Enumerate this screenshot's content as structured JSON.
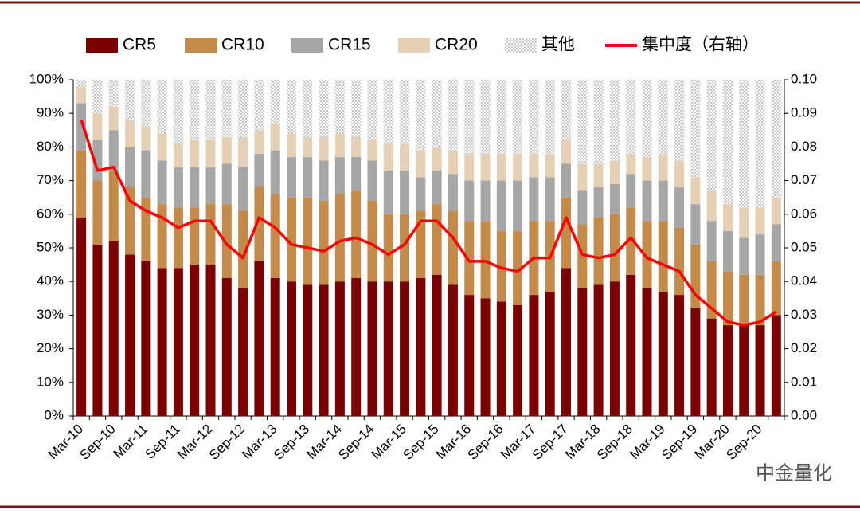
{
  "chart_data": {
    "type": "bar",
    "stacked": true,
    "categories": [
      "Mar-10",
      null,
      "Sep-10",
      null,
      "Mar-11",
      null,
      "Sep-11",
      null,
      "Mar-12",
      null,
      "Sep-12",
      null,
      "Mar-13",
      null,
      "Sep-13",
      null,
      "Mar-14",
      null,
      "Sep-14",
      null,
      "Mar-15",
      null,
      "Sep-15",
      null,
      "Mar-16",
      null,
      "Sep-16",
      null,
      "Mar-17",
      null,
      "Sep-17",
      null,
      "Mar-18",
      null,
      "Sep-18",
      null,
      "Mar-19",
      null,
      "Sep-19",
      null,
      "Mar-20",
      null,
      "Sep-20",
      null
    ],
    "series": [
      {
        "name": "CR5",
        "color": "#7b0000",
        "values": [
          59,
          51,
          52,
          48,
          46,
          44,
          44,
          45,
          45,
          41,
          38,
          46,
          41,
          40,
          39,
          39,
          40,
          41,
          40,
          40,
          40,
          41,
          42,
          39,
          36,
          35,
          34,
          33,
          36,
          37,
          44,
          38,
          39,
          40,
          42,
          38,
          37,
          36,
          32,
          29,
          27,
          27,
          27,
          30
        ]
      },
      {
        "name": "CR10",
        "color": "#c48a4a",
        "values": [
          20,
          19,
          21,
          20,
          19,
          19,
          18,
          17,
          18,
          22,
          23,
          22,
          25,
          25,
          26,
          25,
          26,
          26,
          24,
          20,
          20,
          20,
          21,
          22,
          22,
          23,
          21,
          22,
          22,
          21,
          21,
          19,
          20,
          20,
          20,
          20,
          21,
          20,
          19,
          17,
          16,
          15,
          15,
          16
        ]
      },
      {
        "name": "CR15",
        "color": "#a6a6a6",
        "values": [
          14,
          12,
          12,
          12,
          14,
          13,
          12,
          12,
          11,
          12,
          13,
          10,
          13,
          12,
          12,
          12,
          11,
          10,
          12,
          13,
          13,
          10,
          10,
          11,
          12,
          12,
          15,
          15,
          13,
          13,
          10,
          10,
          9,
          9,
          10,
          12,
          12,
          12,
          12,
          12,
          12,
          11,
          12,
          11
        ]
      },
      {
        "name": "CR20",
        "color": "#e6d0b5",
        "values": [
          5,
          8,
          7,
          8,
          7,
          8,
          7,
          8,
          8,
          8,
          9,
          7,
          8,
          7,
          6,
          7,
          7,
          6,
          6,
          8,
          8,
          8,
          7,
          7,
          8,
          8,
          8,
          8,
          7,
          7,
          7,
          8,
          7,
          7,
          6,
          7,
          8,
          8,
          8,
          9,
          8,
          9,
          8,
          8
        ]
      },
      {
        "name": "其他",
        "color": "#d0d0d0",
        "pattern": "dots",
        "values": [
          2,
          10,
          8,
          12,
          14,
          16,
          19,
          18,
          18,
          17,
          17,
          15,
          13,
          16,
          17,
          17,
          16,
          17,
          18,
          19,
          19,
          21,
          20,
          21,
          22,
          22,
          22,
          22,
          22,
          22,
          18,
          25,
          25,
          24,
          22,
          23,
          22,
          24,
          29,
          33,
          37,
          38,
          38,
          35
        ]
      },
      {
        "name": "集中度（右轴）",
        "color": "#ff0000",
        "type": "line",
        "axis": "y2",
        "values": [
          0.088,
          0.073,
          0.074,
          0.064,
          0.061,
          0.059,
          0.056,
          0.058,
          0.058,
          0.051,
          0.047,
          0.059,
          0.056,
          0.051,
          0.05,
          0.049,
          0.052,
          0.053,
          0.051,
          0.048,
          0.051,
          0.058,
          0.058,
          0.053,
          0.046,
          0.046,
          0.044,
          0.043,
          0.047,
          0.047,
          0.059,
          0.048,
          0.047,
          0.048,
          0.053,
          0.047,
          0.045,
          0.043,
          0.036,
          0.032,
          0.028,
          0.027,
          0.028,
          0.031
        ]
      }
    ],
    "ylim": [
      0,
      100
    ],
    "yticks": [
      {
        "value": 0,
        "label": "0%"
      },
      {
        "value": 10,
        "label": "10%"
      },
      {
        "value": 20,
        "label": "20%"
      },
      {
        "value": 30,
        "label": "30%"
      },
      {
        "value": 40,
        "label": "40%"
      },
      {
        "value": 50,
        "label": "50%"
      },
      {
        "value": 60,
        "label": "60%"
      },
      {
        "value": 70,
        "label": "70%"
      },
      {
        "value": 80,
        "label": "80%"
      },
      {
        "value": 90,
        "label": "90%"
      },
      {
        "value": 100,
        "label": "100%"
      }
    ],
    "y2lim": [
      0,
      0.1
    ],
    "y2ticks": [
      {
        "value": 0,
        "label": "0.00"
      },
      {
        "value": 0.01,
        "label": "0.01"
      },
      {
        "value": 0.02,
        "label": "0.02"
      },
      {
        "value": 0.03,
        "label": "0.03"
      },
      {
        "value": 0.04,
        "label": "0.04"
      },
      {
        "value": 0.05,
        "label": "0.05"
      },
      {
        "value": 0.06,
        "label": "0.06"
      },
      {
        "value": 0.07,
        "label": "0.07"
      },
      {
        "value": 0.08,
        "label": "0.08"
      },
      {
        "value": 0.09,
        "label": "0.09"
      },
      {
        "value": 0.1,
        "label": "0.10"
      }
    ],
    "legend": "top",
    "grid": false,
    "watermark": "中金量化"
  }
}
